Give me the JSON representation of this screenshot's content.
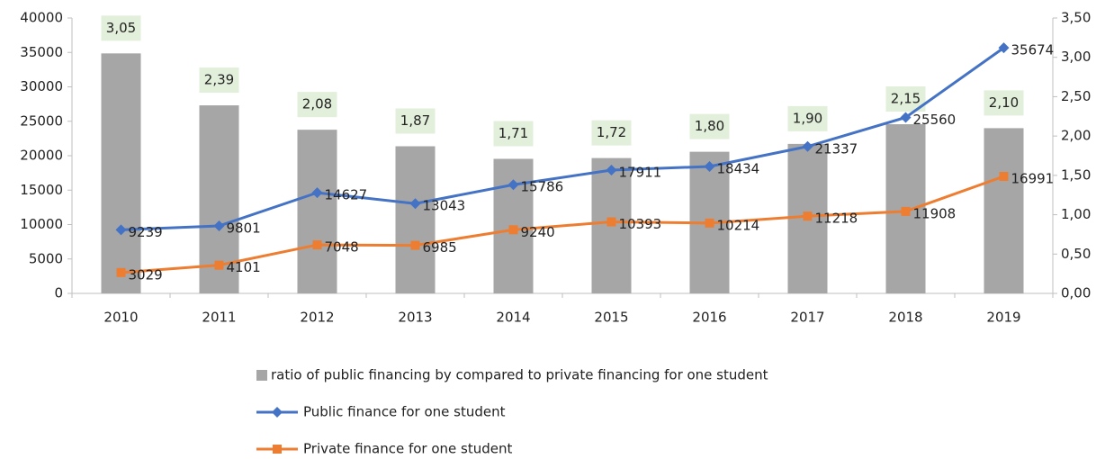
{
  "chart_data": {
    "type": "combo",
    "categories": [
      "2010",
      "2011",
      "2012",
      "2013",
      "2014",
      "2015",
      "2016",
      "2017",
      "2018",
      "2019"
    ],
    "series": [
      {
        "name": "ratio of public financing by compared to private financing for one student",
        "type": "bar",
        "axis": "y2",
        "color": "#a6a6a6",
        "values": [
          3.05,
          2.39,
          2.08,
          1.87,
          1.71,
          1.72,
          1.8,
          1.9,
          2.15,
          2.1
        ],
        "value_labels": [
          "3,05",
          "2,39",
          "2,08",
          "1,87",
          "1,71",
          "1,72",
          "1,80",
          "1,90",
          "2,15",
          "2,10"
        ]
      },
      {
        "name": "Public finance for one student",
        "type": "line",
        "marker": "diamond",
        "color": "#4472c4",
        "values": [
          9239,
          9801,
          14627,
          13043,
          15786,
          17911,
          18434,
          21337,
          25560,
          35674
        ]
      },
      {
        "name": "Private finance for one student",
        "type": "line",
        "marker": "square",
        "color": "#ed7d31",
        "values": [
          3029,
          4101,
          7048,
          6985,
          9240,
          10393,
          10214,
          11218,
          11908,
          16991
        ]
      }
    ],
    "ylim": [
      0,
      40000
    ],
    "yticks": [
      0,
      5000,
      10000,
      15000,
      20000,
      25000,
      30000,
      35000,
      40000
    ],
    "y2lim": [
      0,
      3.5
    ],
    "y2ticks": [
      {
        "value": 0,
        "label": "0,00"
      },
      {
        "value": 0.5,
        "label": "0,50"
      },
      {
        "value": 1,
        "label": "1,00"
      },
      {
        "value": 1.5,
        "label": "1,50"
      },
      {
        "value": 2,
        "label": "2,00"
      },
      {
        "value": 2.5,
        "label": "2,50"
      },
      {
        "value": 3,
        "label": "3,00"
      },
      {
        "value": 3.5,
        "label": "3,50"
      }
    ],
    "legend": "bottom"
  }
}
